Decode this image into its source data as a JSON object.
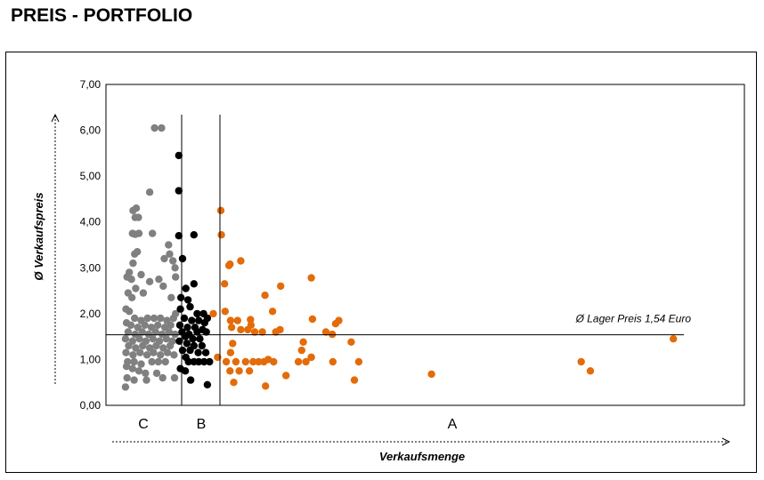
{
  "page": {
    "title": "PREIS - PORTFOLIO"
  },
  "chart_data": {
    "type": "scatter",
    "title": "",
    "xlabel": "Verkaufsmenge",
    "ylabel": "Ø Verkaufspreis",
    "ylim": [
      0,
      7
    ],
    "yticks": [
      "0,00",
      "1,00",
      "2,00",
      "3,00",
      "4,00",
      "5,00",
      "6,00",
      "7,00"
    ],
    "xlim": [
      0,
      100
    ],
    "grid": false,
    "segments": [
      "C",
      "B",
      "A"
    ],
    "segment_boundaries": [
      12,
      18
    ],
    "reference_line": {
      "value": 1.54,
      "label": "Ø Lager Preis 1,54 Euro"
    },
    "colors": {
      "C": "#808080",
      "B": "#000000",
      "A": "#e36c0a"
    },
    "series": [
      {
        "name": "C",
        "points": [
          [
            9.0,
            6.05
          ],
          [
            7.7,
            6.05
          ],
          [
            6.8,
            4.65
          ],
          [
            4.3,
            4.3
          ],
          [
            3.7,
            4.25
          ],
          [
            4.7,
            4.1
          ],
          [
            4.1,
            4.1
          ],
          [
            3.6,
            3.75
          ],
          [
            4.8,
            3.75
          ],
          [
            7.3,
            3.75
          ],
          [
            4.1,
            3.73
          ],
          [
            10.3,
            3.5
          ],
          [
            4.5,
            3.35
          ],
          [
            4.0,
            3.3
          ],
          [
            10.5,
            3.3
          ],
          [
            11.1,
            3.15
          ],
          [
            9.5,
            3.2
          ],
          [
            3.7,
            3.1
          ],
          [
            11.5,
            3.0
          ],
          [
            3.0,
            2.9
          ],
          [
            5.2,
            2.85
          ],
          [
            2.6,
            2.8
          ],
          [
            3.4,
            2.75
          ],
          [
            6.8,
            2.7
          ],
          [
            8.5,
            2.75
          ],
          [
            11.6,
            2.8
          ],
          [
            9.3,
            2.6
          ],
          [
            4.2,
            2.55
          ],
          [
            2.8,
            2.45
          ],
          [
            5.6,
            2.45
          ],
          [
            3.5,
            2.35
          ],
          [
            10.8,
            2.35
          ],
          [
            2.4,
            2.1
          ],
          [
            3.0,
            2.05
          ],
          [
            11.6,
            2.0
          ],
          [
            4.0,
            1.9
          ],
          [
            5.2,
            1.85
          ],
          [
            6.4,
            1.9
          ],
          [
            7.6,
            1.9
          ],
          [
            8.8,
            1.9
          ],
          [
            10.0,
            1.85
          ],
          [
            11.2,
            1.9
          ],
          [
            2.5,
            1.8
          ],
          [
            3.3,
            1.75
          ],
          [
            4.6,
            1.7
          ],
          [
            5.9,
            1.75
          ],
          [
            7.1,
            1.7
          ],
          [
            8.3,
            1.75
          ],
          [
            9.6,
            1.7
          ],
          [
            10.7,
            1.75
          ],
          [
            2.8,
            1.6
          ],
          [
            4.1,
            1.55
          ],
          [
            5.4,
            1.6
          ],
          [
            6.6,
            1.55
          ],
          [
            7.9,
            1.6
          ],
          [
            9.1,
            1.55
          ],
          [
            10.4,
            1.6
          ],
          [
            11.5,
            1.55
          ],
          [
            2.3,
            1.45
          ],
          [
            3.6,
            1.4
          ],
          [
            4.9,
            1.45
          ],
          [
            6.1,
            1.4
          ],
          [
            7.4,
            1.45
          ],
          [
            8.6,
            1.4
          ],
          [
            9.9,
            1.45
          ],
          [
            11.0,
            1.4
          ],
          [
            2.9,
            1.3
          ],
          [
            4.2,
            1.25
          ],
          [
            5.5,
            1.3
          ],
          [
            6.8,
            1.25
          ],
          [
            8.0,
            1.3
          ],
          [
            9.3,
            1.25
          ],
          [
            10.6,
            1.3
          ],
          [
            2.4,
            1.15
          ],
          [
            3.7,
            1.1
          ],
          [
            5.0,
            1.15
          ],
          [
            6.3,
            1.1
          ],
          [
            7.5,
            1.15
          ],
          [
            8.8,
            1.1
          ],
          [
            10.1,
            1.15
          ],
          [
            11.3,
            1.1
          ],
          [
            2.7,
            0.95
          ],
          [
            3.9,
            0.95
          ],
          [
            5.2,
            0.9
          ],
          [
            7.2,
            0.95
          ],
          [
            8.4,
            0.95
          ],
          [
            9.7,
            0.95
          ],
          [
            2.5,
            0.85
          ],
          [
            3.6,
            0.8
          ],
          [
            4.8,
            0.75
          ],
          [
            6.0,
            0.7
          ],
          [
            8.1,
            0.7
          ],
          [
            9.2,
            0.6
          ],
          [
            2.6,
            0.6
          ],
          [
            3.9,
            0.55
          ],
          [
            6.2,
            0.55
          ],
          [
            2.3,
            0.4
          ],
          [
            11.4,
            0.6
          ]
        ]
      },
      {
        "name": "B",
        "points": [
          [
            12.2,
            5.45
          ],
          [
            12.2,
            4.68
          ],
          [
            12.2,
            3.7
          ],
          [
            15.0,
            3.72
          ],
          [
            12.9,
            3.2
          ],
          [
            15.0,
            2.65
          ],
          [
            13.5,
            2.55
          ],
          [
            12.6,
            2.35
          ],
          [
            13.9,
            2.3
          ],
          [
            14.3,
            2.15
          ],
          [
            12.5,
            2.1
          ],
          [
            15.6,
            2.0
          ],
          [
            16.8,
            2.0
          ],
          [
            17.5,
            1.9
          ],
          [
            13.2,
            1.9
          ],
          [
            14.6,
            1.85
          ],
          [
            15.9,
            1.85
          ],
          [
            17.0,
            1.8
          ],
          [
            12.4,
            1.75
          ],
          [
            13.8,
            1.7
          ],
          [
            15.2,
            1.7
          ],
          [
            16.6,
            1.65
          ],
          [
            12.8,
            1.6
          ],
          [
            14.1,
            1.55
          ],
          [
            15.6,
            1.6
          ],
          [
            17.3,
            1.6
          ],
          [
            13.4,
            1.5
          ],
          [
            14.8,
            1.45
          ],
          [
            16.1,
            1.45
          ],
          [
            12.3,
            1.4
          ],
          [
            13.7,
            1.35
          ],
          [
            15.0,
            1.3
          ],
          [
            16.5,
            1.3
          ],
          [
            12.9,
            1.2
          ],
          [
            14.3,
            1.2
          ],
          [
            15.8,
            1.15
          ],
          [
            17.2,
            1.15
          ],
          [
            13.5,
            1.05
          ],
          [
            14.0,
            0.95
          ],
          [
            15.0,
            0.95
          ],
          [
            15.9,
            0.95
          ],
          [
            16.9,
            0.95
          ],
          [
            17.9,
            0.95
          ],
          [
            12.5,
            0.8
          ],
          [
            13.4,
            0.75
          ],
          [
            14.4,
            0.55
          ],
          [
            17.5,
            0.45
          ]
        ]
      },
      {
        "name": "A",
        "points": [
          [
            20.0,
            4.25
          ],
          [
            20.1,
            3.72
          ],
          [
            23.7,
            3.15
          ],
          [
            21.7,
            3.08
          ],
          [
            21.5,
            3.05
          ],
          [
            20.7,
            2.65
          ],
          [
            36.8,
            2.78
          ],
          [
            31.1,
            2.6
          ],
          [
            28.2,
            2.4
          ],
          [
            29.6,
            2.05
          ],
          [
            18.6,
            2.0
          ],
          [
            20.8,
            2.05
          ],
          [
            21.8,
            1.85
          ],
          [
            23.1,
            1.85
          ],
          [
            25.5,
            1.87
          ],
          [
            25.6,
            1.75
          ],
          [
            37.0,
            1.88
          ],
          [
            41.3,
            1.78
          ],
          [
            41.9,
            1.85
          ],
          [
            22.0,
            1.7
          ],
          [
            23.7,
            1.65
          ],
          [
            25.0,
            1.65
          ],
          [
            26.3,
            1.6
          ],
          [
            27.7,
            1.6
          ],
          [
            30.2,
            1.6
          ],
          [
            31.0,
            1.65
          ],
          [
            39.5,
            1.6
          ],
          [
            40.7,
            1.55
          ],
          [
            22.2,
            1.35
          ],
          [
            21.8,
            1.15
          ],
          [
            44.2,
            1.38
          ],
          [
            35.3,
            1.38
          ],
          [
            35.0,
            1.2
          ],
          [
            36.8,
            1.05
          ],
          [
            19.4,
            1.05
          ],
          [
            21.0,
            0.95
          ],
          [
            22.8,
            0.95
          ],
          [
            24.6,
            0.95
          ],
          [
            26.0,
            0.95
          ],
          [
            27.0,
            0.95
          ],
          [
            28.0,
            0.95
          ],
          [
            28.8,
            1.0
          ],
          [
            29.8,
            0.95
          ],
          [
            34.4,
            0.95
          ],
          [
            35.8,
            0.95
          ],
          [
            36.8,
            1.05
          ],
          [
            40.8,
            0.95
          ],
          [
            45.6,
            0.95
          ],
          [
            21.7,
            0.75
          ],
          [
            23.4,
            0.75
          ],
          [
            25.3,
            0.75
          ],
          [
            32.1,
            0.65
          ],
          [
            44.8,
            0.55
          ],
          [
            22.4,
            0.5
          ],
          [
            28.3,
            0.42
          ],
          [
            59.1,
            0.68
          ],
          [
            86.9,
            0.95
          ],
          [
            88.6,
            0.75
          ],
          [
            104.0,
            1.45
          ]
        ]
      }
    ]
  }
}
